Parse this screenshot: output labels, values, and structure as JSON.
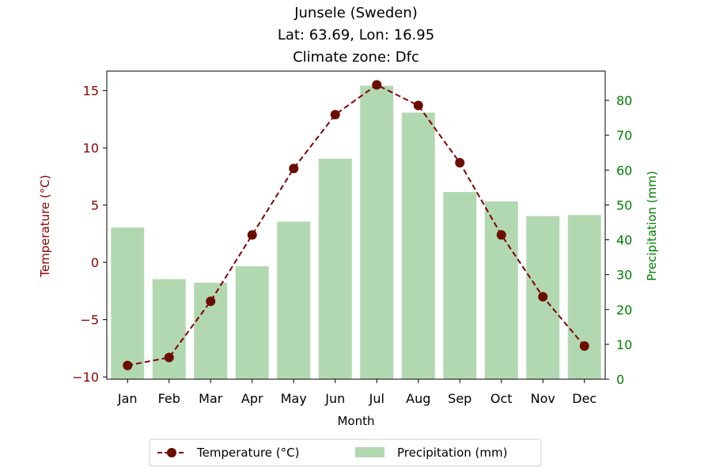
{
  "chart_data": {
    "type": "bar+line",
    "title_lines": [
      "Junsele (Sweden)",
      "Lat: 63.69, Lon: 16.95",
      "Climate zone: Dfc"
    ],
    "xlabel": "Month",
    "ylabel_left": "Temperature (°C)",
    "ylabel_right": "Precipitation (mm)",
    "categories": [
      "Jan",
      "Feb",
      "Mar",
      "Apr",
      "May",
      "Jun",
      "Jul",
      "Aug",
      "Sep",
      "Oct",
      "Nov",
      "Dec"
    ],
    "temperature": [
      -9.0,
      -8.3,
      -3.4,
      2.4,
      8.2,
      12.9,
      15.5,
      13.7,
      8.7,
      2.4,
      -3.0,
      -7.3
    ],
    "precipitation": [
      43.5,
      28.7,
      27.7,
      32.4,
      45.2,
      63.3,
      84.2,
      76.5,
      53.7,
      51.0,
      46.8,
      47.1
    ],
    "ylim_left": [
      -10.2,
      16.7
    ],
    "ylim_right": [
      0,
      88.4
    ],
    "yticks_left": [
      -10,
      -5,
      0,
      5,
      10,
      15
    ],
    "yticks_right": [
      0,
      10,
      20,
      30,
      40,
      50,
      60,
      70,
      80
    ],
    "legend": {
      "placement": "bottom-center",
      "entries": [
        "Temperature (°C)",
        "Precipitation (mm)"
      ]
    },
    "colors": {
      "temperature_line": "#800000",
      "temperature_marker": "#6b0d00",
      "precipitation_bar": "#b2d8b2",
      "left_axis": "#8b0000",
      "right_axis": "#008000"
    },
    "grid": false
  }
}
